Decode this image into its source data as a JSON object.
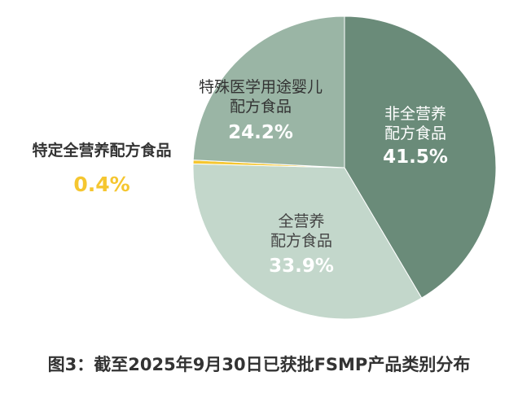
{
  "chart_data": {
    "type": "pie",
    "title": "图3：截至2025年9月30日已获批FSMP产品类别分布",
    "start_angle": "12 o'clock",
    "direction": "clockwise",
    "slices": [
      {
        "label_line1": "非全营养",
        "label_line2": "配方食品",
        "value": 41.5,
        "value_label": "41.5%",
        "color": "#6a8b79"
      },
      {
        "label_line1": "全营养",
        "label_line2": "配方食品",
        "value": 33.9,
        "value_label": "33.9%",
        "color": "#c3d7cb"
      },
      {
        "label_line1": "特定全营养配方食品",
        "label_line2": "",
        "value": 0.4,
        "value_label": "0.4%",
        "color": "#f5c630"
      },
      {
        "label_line1": "特殊医学用途婴儿",
        "label_line2": "配方食品",
        "value": 24.2,
        "value_label": "24.2%",
        "color": "#9ab5a5"
      }
    ]
  }
}
